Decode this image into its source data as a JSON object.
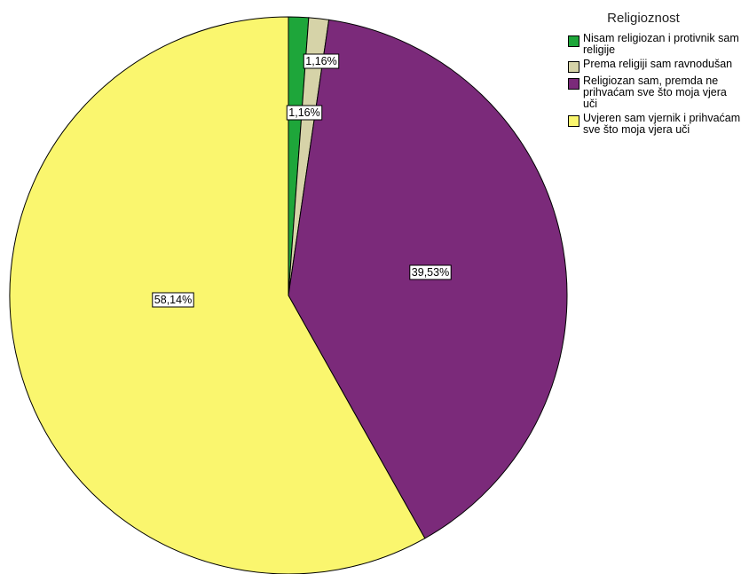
{
  "chart_data": {
    "type": "pie",
    "legend_title": "Religioznost",
    "legend_placement": "top-right",
    "slices": [
      {
        "label": "Nisam religiozan i protivnik sam religije",
        "value": 1.16,
        "value_label": "",
        "color": "#1ea63a"
      },
      {
        "label": "Prema religiji sam ravnodušan",
        "value": 1.16,
        "value_label": "1,16%",
        "color": "#d6d3a8"
      },
      {
        "label": "Religiozan sam, premda ne prihvaćam sve što moja vjera uči",
        "value": 39.53,
        "value_label": "39,53%",
        "color": "#7b2a7a"
      },
      {
        "label": "Uvjeren sam vjernik i prihvaćam sve što moja vjera uči",
        "value": 58.14,
        "value_label": "58,14%",
        "color": "#faf66e"
      }
    ],
    "extra_labels": [
      "1,16%"
    ]
  }
}
